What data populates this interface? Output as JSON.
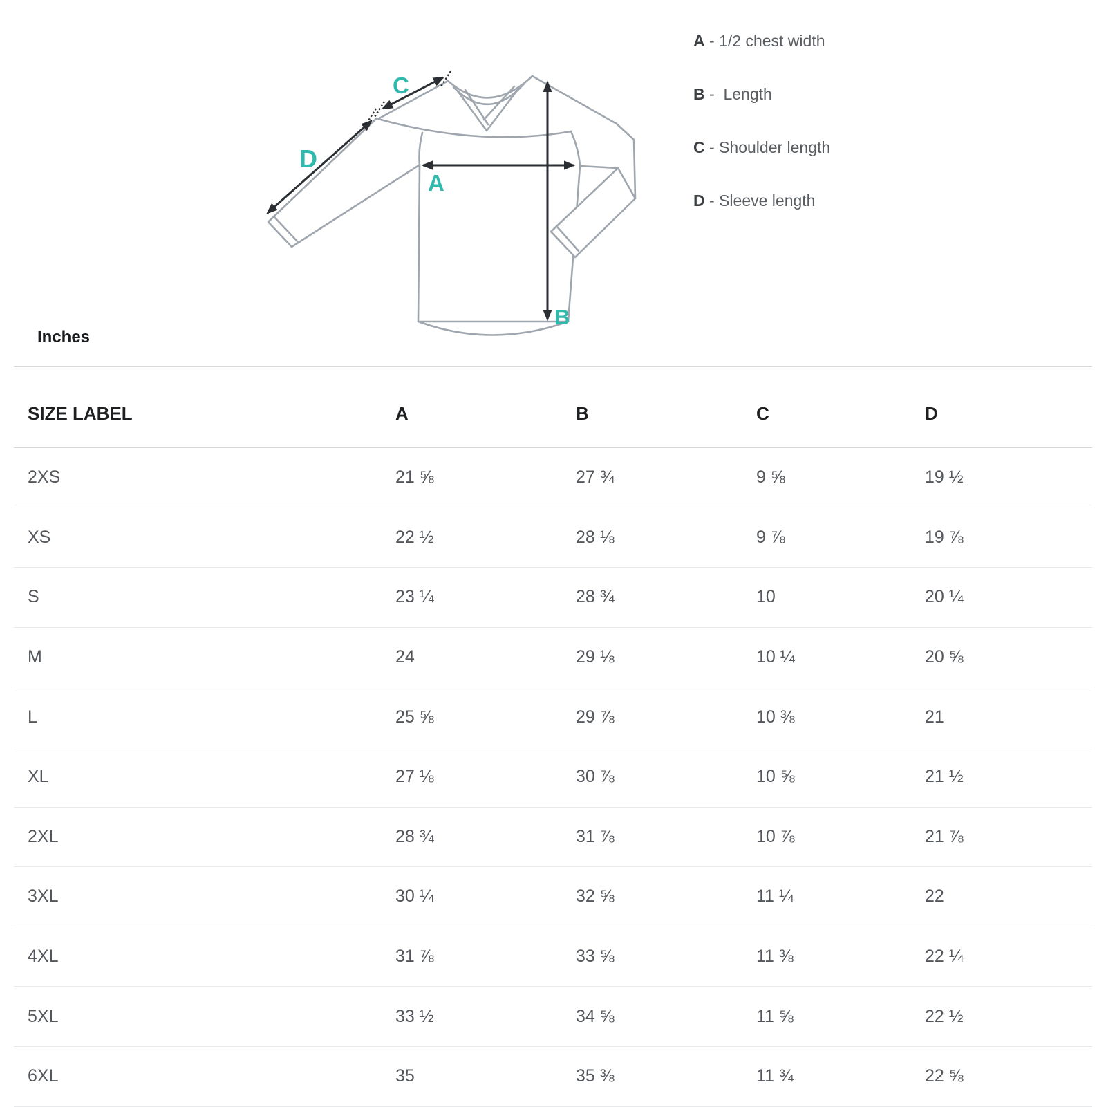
{
  "diagram": {
    "labels": {
      "a": "A",
      "b": "B",
      "c": "C",
      "d": "D"
    },
    "accent_color": "#30b9ac",
    "arrow_color": "#2b2e32",
    "garment_line_color": "#9fa6ae"
  },
  "legend": {
    "separator": " - ",
    "items": [
      {
        "key": "A",
        "label": "1/2 chest width"
      },
      {
        "key": "B",
        "label": " Length"
      },
      {
        "key": "C",
        "label": "Shoulder length"
      },
      {
        "key": "D",
        "label": "Sleeve length"
      }
    ]
  },
  "units_label": "Inches",
  "table": {
    "headers": [
      "SIZE LABEL",
      "A",
      "B",
      "C",
      "D"
    ],
    "rows": [
      {
        "size": "2XS",
        "values": [
          "21 ⅝",
          "27 ¾",
          "9 ⅝",
          "19 ½"
        ]
      },
      {
        "size": "XS",
        "values": [
          "22 ½",
          "28 ⅛",
          "9 ⅞",
          "19 ⅞"
        ]
      },
      {
        "size": "S",
        "values": [
          "23 ¼",
          "28 ¾",
          "10",
          "20 ¼"
        ]
      },
      {
        "size": "M",
        "values": [
          "24",
          "29 ⅛",
          "10 ¼",
          "20 ⅝"
        ]
      },
      {
        "size": "L",
        "values": [
          "25 ⅝",
          "29 ⅞",
          "10 ⅜",
          "21"
        ]
      },
      {
        "size": "XL",
        "values": [
          "27 ⅛",
          "30 ⅞",
          "10 ⅝",
          "21 ½"
        ]
      },
      {
        "size": "2XL",
        "values": [
          "28 ¾",
          "31 ⅞",
          "10 ⅞",
          "21 ⅞"
        ]
      },
      {
        "size": "3XL",
        "values": [
          "30 ¼",
          "32 ⅝",
          "11 ¼",
          "22"
        ]
      },
      {
        "size": "4XL",
        "values": [
          "31 ⅞",
          "33 ⅝",
          "11 ⅜",
          "22 ¼"
        ]
      },
      {
        "size": "5XL",
        "values": [
          "33 ½",
          "34 ⅝",
          "11 ⅝",
          "22 ½"
        ]
      },
      {
        "size": "6XL",
        "values": [
          "35",
          "35 ⅜",
          "11 ¾",
          "22 ⅝"
        ]
      }
    ]
  }
}
